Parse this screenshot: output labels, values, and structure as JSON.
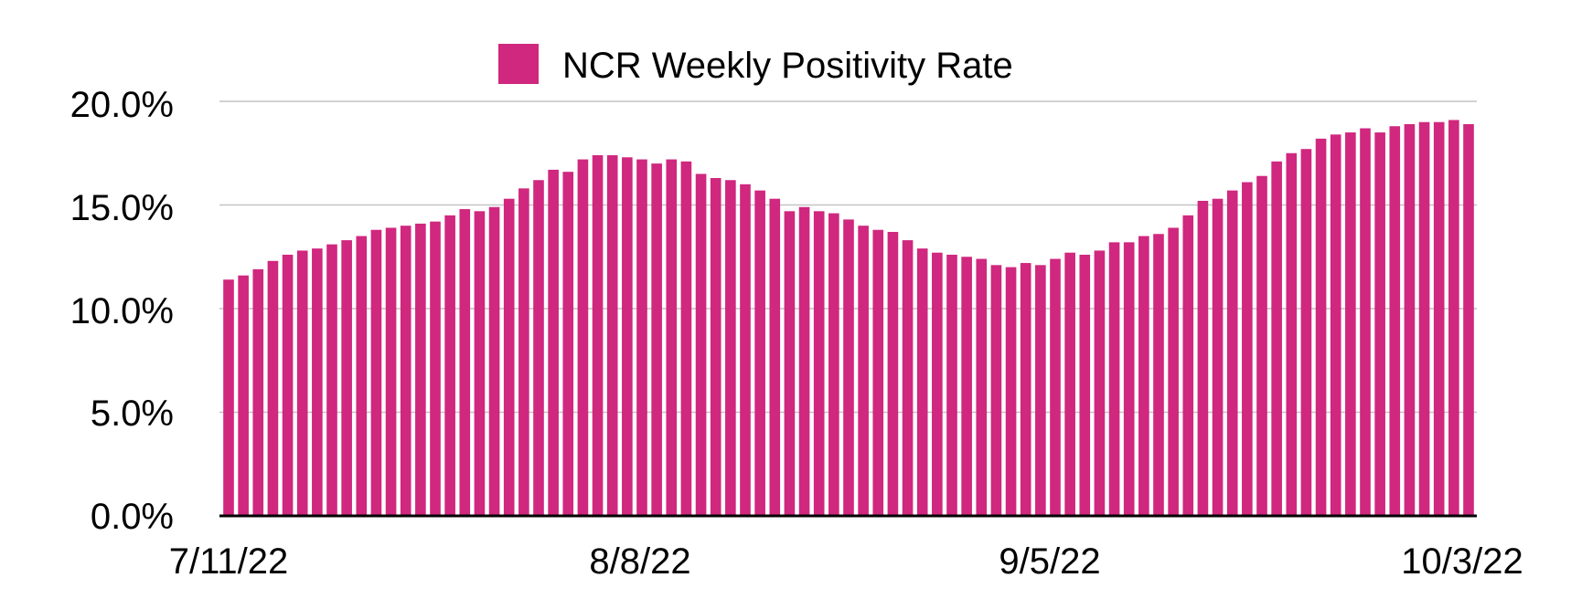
{
  "chart_data": {
    "type": "bar",
    "title": "",
    "xlabel": "",
    "ylabel": "",
    "legend": {
      "position": "top-center",
      "label": "NCR Weekly Positivity Rate"
    },
    "series": [
      {
        "name": "NCR Weekly Positivity Rate",
        "color": "#d0277f",
        "values": [
          11.4,
          11.6,
          11.9,
          12.3,
          12.6,
          12.8,
          12.9,
          13.1,
          13.3,
          13.5,
          13.8,
          13.9,
          14.0,
          14.1,
          14.2,
          14.5,
          14.8,
          14.7,
          14.9,
          15.3,
          15.8,
          16.2,
          16.7,
          16.6,
          17.2,
          17.4,
          17.4,
          17.3,
          17.2,
          17.0,
          17.2,
          17.1,
          16.5,
          16.3,
          16.2,
          16.0,
          15.7,
          15.3,
          14.7,
          14.9,
          14.7,
          14.6,
          14.3,
          14.0,
          13.8,
          13.7,
          13.3,
          12.9,
          12.7,
          12.6,
          12.5,
          12.4,
          12.1,
          12.0,
          12.2,
          12.1,
          12.4,
          12.7,
          12.6,
          12.8,
          13.2,
          13.2,
          13.5,
          13.6,
          13.9,
          14.5,
          15.2,
          15.3,
          15.7,
          16.1,
          16.4,
          17.1,
          17.5,
          17.7,
          18.2,
          18.4,
          18.5,
          18.7,
          18.5,
          18.8,
          18.9,
          19.0,
          19.0,
          19.1,
          18.9
        ]
      }
    ],
    "x_tick_labels": [
      "7/11/22",
      "8/8/22",
      "9/5/22",
      "10/3/22"
    ],
    "y_tick_labels": [
      "0.0%",
      "5.0%",
      "10.0%",
      "15.0%",
      "20.0%"
    ],
    "ylim": [
      0,
      20
    ],
    "grid": true
  }
}
